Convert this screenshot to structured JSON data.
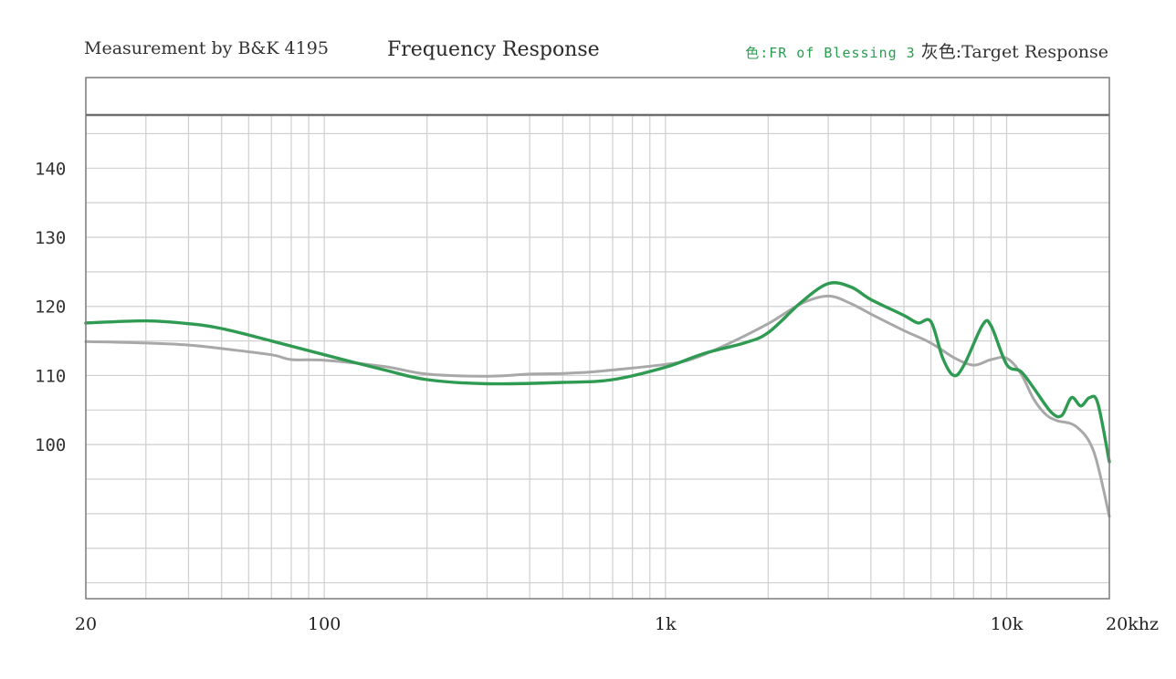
{
  "header": {
    "left": "Measurement by B&K 4195",
    "title": "Frequency Response",
    "legend_green": "色:FR of Blessing 3",
    "legend_grey": "灰色:Target Response"
  },
  "colors": {
    "green": "#2f9a52",
    "grey": "#a8a8a8",
    "grid": "#cfcfcf",
    "frame": "#7a7a7a"
  },
  "chart_data": {
    "type": "line",
    "title": "Frequency Response",
    "xscale": "log",
    "xlim": [
      20,
      20000
    ],
    "ylim": [
      80,
      150
    ],
    "y_ticks": [
      100,
      110,
      120,
      130,
      140
    ],
    "y_tick_labels": [
      "100",
      "110",
      "120",
      "130",
      "140"
    ],
    "x_ticks": [
      20,
      100,
      1000,
      10000,
      20000
    ],
    "x_tick_labels": [
      "20",
      "100",
      "1k",
      "10k",
      "20khz"
    ],
    "series": [
      {
        "name": "FR of Blessing 3",
        "color": "#2f9a52",
        "points": [
          [
            20,
            117.6
          ],
          [
            30,
            117.9
          ],
          [
            40,
            117.5
          ],
          [
            50,
            116.8
          ],
          [
            70,
            115.0
          ],
          [
            100,
            113.0
          ],
          [
            150,
            110.8
          ],
          [
            200,
            109.4
          ],
          [
            300,
            108.8
          ],
          [
            500,
            109.0
          ],
          [
            700,
            109.4
          ],
          [
            1000,
            111.2
          ],
          [
            1300,
            113.2
          ],
          [
            1700,
            114.7
          ],
          [
            2000,
            116.2
          ],
          [
            2500,
            120.6
          ],
          [
            3000,
            123.3
          ],
          [
            3500,
            122.8
          ],
          [
            4000,
            121.0
          ],
          [
            5000,
            118.7
          ],
          [
            5500,
            117.6
          ],
          [
            6000,
            117.8
          ],
          [
            6500,
            112.5
          ],
          [
            7000,
            110.0
          ],
          [
            7500,
            111.5
          ],
          [
            8500,
            117.3
          ],
          [
            9000,
            117.2
          ],
          [
            10000,
            111.6
          ],
          [
            11000,
            110.6
          ],
          [
            12000,
            108.2
          ],
          [
            13500,
            104.7
          ],
          [
            14500,
            104.2
          ],
          [
            15500,
            106.8
          ],
          [
            16500,
            105.6
          ],
          [
            17500,
            106.8
          ],
          [
            18500,
            106.0
          ],
          [
            20000,
            97.5
          ]
        ]
      },
      {
        "name": "Target Response",
        "color": "#a8a8a8",
        "points": [
          [
            20,
            114.9
          ],
          [
            30,
            114.7
          ],
          [
            40,
            114.4
          ],
          [
            50,
            113.9
          ],
          [
            70,
            113.0
          ],
          [
            80,
            112.3
          ],
          [
            100,
            112.2
          ],
          [
            150,
            111.3
          ],
          [
            200,
            110.2
          ],
          [
            300,
            109.9
          ],
          [
            400,
            110.2
          ],
          [
            500,
            110.3
          ],
          [
            600,
            110.5
          ],
          [
            700,
            110.8
          ],
          [
            1000,
            111.6
          ],
          [
            1200,
            112.4
          ],
          [
            1500,
            114.4
          ],
          [
            2000,
            117.5
          ],
          [
            2500,
            120.4
          ],
          [
            3000,
            121.5
          ],
          [
            3500,
            120.4
          ],
          [
            4000,
            118.9
          ],
          [
            5000,
            116.5
          ],
          [
            6000,
            114.7
          ],
          [
            7000,
            112.6
          ],
          [
            8000,
            111.5
          ],
          [
            9000,
            112.3
          ],
          [
            10000,
            112.5
          ],
          [
            11000,
            110.3
          ],
          [
            12000,
            106.6
          ],
          [
            13000,
            104.4
          ],
          [
            14000,
            103.5
          ],
          [
            16000,
            102.6
          ],
          [
            18000,
            99.0
          ],
          [
            20000,
            89.6
          ]
        ]
      }
    ]
  }
}
